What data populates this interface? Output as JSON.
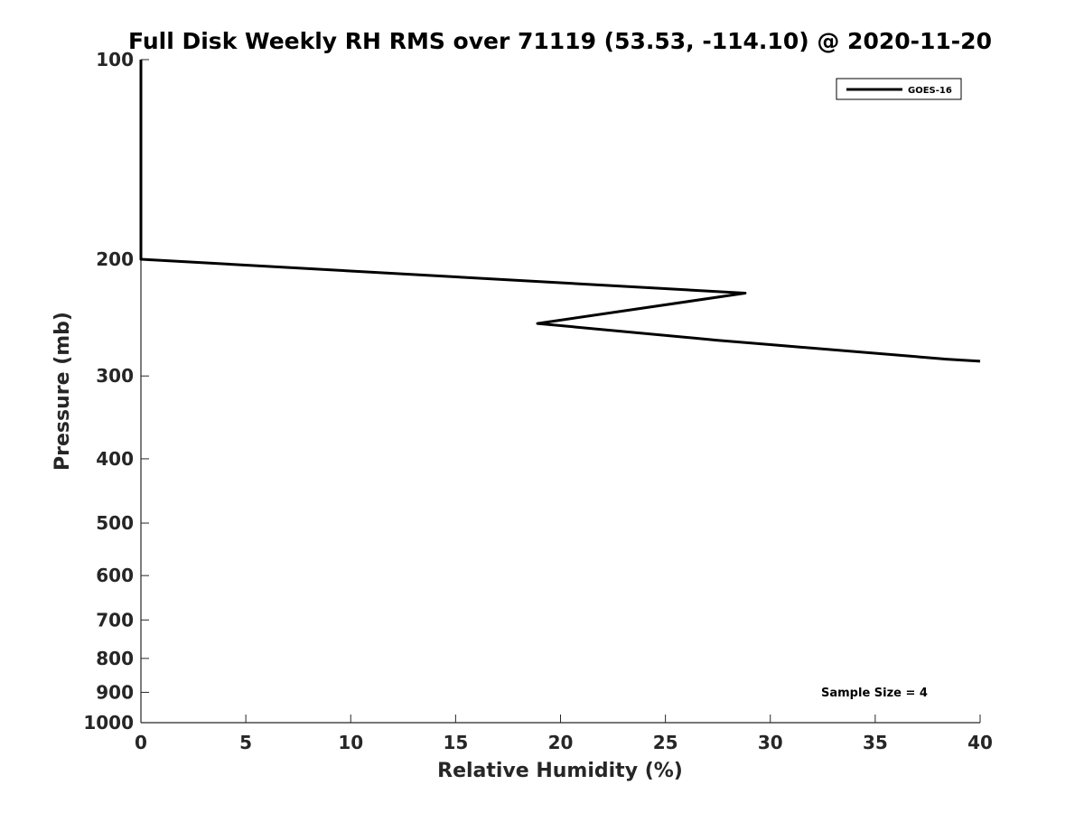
{
  "chart_data": {
    "type": "line",
    "title": "Full Disk Weekly RH RMS over 71119 (53.53, -114.10) @ 2020-11-20",
    "xlabel": "Relative Humidity (%)",
    "ylabel": "Pressure (mb)",
    "xlim": [
      0,
      40
    ],
    "ylim": [
      100,
      1000
    ],
    "yscale": "log",
    "y_inverted": true,
    "grid": false,
    "legend": "top-right",
    "x_ticks": [
      "0",
      "5",
      "10",
      "15",
      "20",
      "25",
      "30",
      "35",
      "40"
    ],
    "y_ticks": [
      "100",
      "200",
      "300",
      "400",
      "500",
      "600",
      "700",
      "800",
      "900",
      "1000"
    ],
    "series": [
      {
        "name": "GOES-16",
        "color": "#000000",
        "points": [
          {
            "x": 0.0,
            "p": 100
          },
          {
            "x": 0.0,
            "p": 150
          },
          {
            "x": 0.0,
            "p": 200
          },
          {
            "x": 28.8,
            "p": 225
          },
          {
            "x": 18.9,
            "p": 250
          },
          {
            "x": 27.5,
            "p": 265
          },
          {
            "x": 38.4,
            "p": 283
          },
          {
            "x": 40.0,
            "p": 285
          }
        ]
      }
    ],
    "annotation": "Sample Size = 4"
  }
}
